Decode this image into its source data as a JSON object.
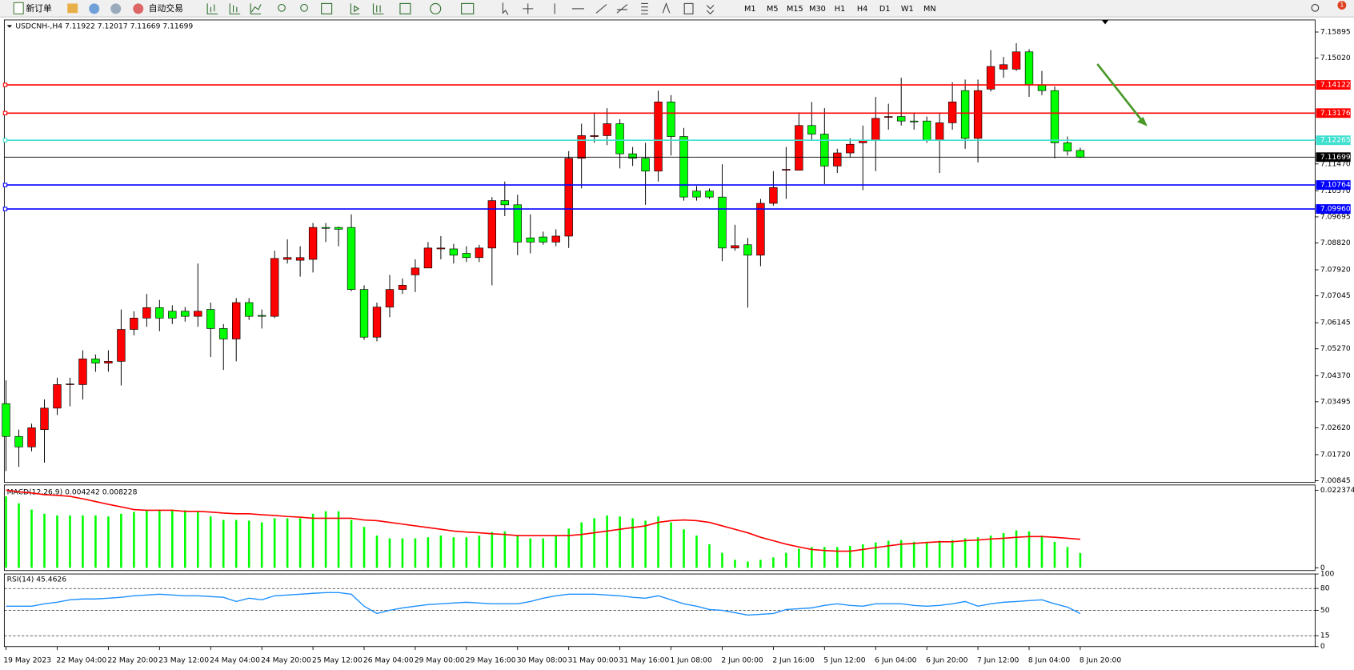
{
  "toolbar": {
    "new_order": "新订单",
    "auto_trading": "自动交易",
    "timeframes": [
      "M1",
      "M5",
      "M15",
      "M30",
      "H1",
      "H4",
      "D1",
      "W1",
      "MN"
    ],
    "alerts": "1"
  },
  "chart_data": [
    {
      "type": "candlestick",
      "symbol": "USDCNH-,H4",
      "up_color": "#ff0000",
      "down_color": "#00ff00",
      "categories": [
        "19 May 2023",
        null,
        null,
        null,
        "22 May 04:00",
        null,
        null,
        null,
        "22 May 20:00",
        null,
        null,
        null,
        "23 May 12:00",
        null,
        null,
        null,
        "24 May 04:00",
        null,
        null,
        null,
        "24 May 20:00",
        null,
        null,
        null,
        "25 May 12:00",
        null,
        null,
        null,
        "26 May 04:00",
        null,
        null,
        null,
        "29 May 00:00",
        null,
        null,
        null,
        "29 May 16:00",
        null,
        null,
        null,
        "30 May 08:00",
        null,
        null,
        null,
        "31 May 00:00",
        null,
        null,
        null,
        "31 May 16:00",
        null,
        null,
        null,
        "1 Jun 08:00",
        null,
        null,
        null,
        "2 Jun 00:00",
        null,
        null,
        null,
        "2 Jun 16:00",
        null,
        null,
        null,
        "5 Jun 12:00",
        null,
        null,
        null,
        "6 Jun 04:00",
        null,
        null,
        null,
        "6 Jun 20:00",
        null,
        null,
        null,
        "7 Jun 12:00",
        null,
        null,
        null,
        "8 Jun 04:00",
        null,
        null,
        null,
        "8 Jun 20:00"
      ],
      "open": [
        7.0343,
        7.0233,
        7.0198,
        7.0256,
        7.0328,
        7.0407,
        7.0407,
        7.0493,
        7.0479,
        7.0485,
        7.0592,
        7.063,
        7.0665,
        7.0653,
        7.0653,
        7.0636,
        7.0659,
        7.0595,
        7.056,
        7.0682,
        7.0639,
        7.0636,
        7.0827,
        7.0824,
        7.0827,
        7.0934,
        7.0934,
        7.0934,
        7.0726,
        7.0566,
        7.0667,
        7.0726,
        7.0775,
        7.0798,
        7.0862,
        7.0862,
        7.0847,
        7.0833,
        7.0865,
        7.1024,
        7.101,
        7.0899,
        7.0902,
        7.0885,
        7.0905,
        7.1166,
        7.1239,
        7.1242,
        7.1282,
        7.1181,
        7.1166,
        7.1123,
        7.1355,
        7.1239,
        7.1056,
        7.1056,
        7.1036,
        7.0865,
        7.0876,
        7.0841,
        7.1015,
        7.1126,
        7.1126,
        7.1276,
        7.1247,
        7.114,
        7.1184,
        7.1218,
        7.1227,
        7.1303,
        7.1306,
        7.1291,
        7.1291,
        7.1227,
        7.1285,
        7.1393,
        7.1233,
        7.1398,
        7.1465,
        7.1465,
        7.1523,
        7.1413,
        7.1393,
        7.1218,
        7.11922
      ],
      "high": [
        7.0421,
        7.0256,
        7.0276,
        7.0357,
        7.043,
        7.043,
        7.0522,
        7.0508,
        7.0522,
        7.0659,
        7.0653,
        7.0711,
        7.0691,
        7.0673,
        7.0667,
        7.0813,
        7.0682,
        7.061,
        7.0697,
        7.0697,
        7.0659,
        7.0856,
        7.0894,
        7.0871,
        7.0949,
        7.0949,
        7.0937,
        7.0978,
        7.074,
        7.0682,
        7.0775,
        7.0763,
        7.0827,
        7.0885,
        7.0905,
        7.0879,
        7.0871,
        7.0876,
        7.1036,
        7.1088,
        7.1044,
        7.0978,
        7.092,
        7.0928,
        7.119,
        7.1282,
        7.132,
        7.1334,
        7.1297,
        7.1204,
        7.1218,
        7.1393,
        7.1378,
        7.1268,
        7.1073,
        7.1065,
        7.1146,
        7.0943,
        7.0899,
        7.103,
        7.1123,
        7.1204,
        7.132,
        7.1355,
        7.1334,
        7.1198,
        7.1233,
        7.1276,
        7.1372,
        7.1349,
        7.1436,
        7.132,
        7.1306,
        7.132,
        7.1421,
        7.143,
        7.143,
        7.1529,
        7.1506,
        7.1552,
        7.1532,
        7.1459,
        7.1407,
        7.1239,
        7.12017
      ],
      "low": [
        7.0117,
        7.0131,
        7.0183,
        7.0145,
        7.0305,
        7.0334,
        7.0357,
        7.045,
        7.045,
        7.0404,
        7.0572,
        7.0601,
        7.0586,
        7.061,
        7.0618,
        7.0601,
        7.0499,
        7.0456,
        7.0485,
        7.0624,
        7.0595,
        7.063,
        7.0813,
        7.0769,
        7.0783,
        7.0885,
        7.0871,
        7.072,
        7.0557,
        7.0552,
        7.0633,
        7.0711,
        7.0717,
        7.0798,
        7.0827,
        7.0813,
        7.0818,
        7.0818,
        7.074,
        7.0972,
        7.0841,
        7.0847,
        7.0876,
        7.0871,
        7.0865,
        7.1065,
        7.1218,
        7.121,
        7.1132,
        7.114,
        7.101,
        7.1088,
        7.1175,
        7.1024,
        7.1024,
        7.103,
        7.0821,
        7.0856,
        7.0665,
        7.0804,
        7.1007,
        7.103,
        7.1126,
        7.1227,
        7.1079,
        7.1117,
        7.1169,
        7.1059,
        7.1123,
        7.1262,
        7.1276,
        7.1262,
        7.1218,
        7.1117,
        7.1262,
        7.1198,
        7.1152,
        7.139,
        7.1436,
        7.1459,
        7.1372,
        7.1378,
        7.1166,
        7.1175,
        7.11669
      ],
      "close": [
        7.0233,
        7.0198,
        7.0262,
        7.0328,
        7.0407,
        7.0409,
        7.0493,
        7.0479,
        7.0485,
        7.0592,
        7.063,
        7.0665,
        7.063,
        7.063,
        7.0636,
        7.0653,
        7.0595,
        7.056,
        7.0682,
        7.0636,
        7.0636,
        7.083,
        7.0833,
        7.0833,
        7.0934,
        7.0931,
        7.0928,
        7.0726,
        7.0566,
        7.0667,
        7.0726,
        7.074,
        7.0798,
        7.0865,
        7.0865,
        7.0841,
        7.0833,
        7.0865,
        7.1024,
        7.101,
        7.0885,
        7.0885,
        7.0885,
        7.0905,
        7.1166,
        7.1242,
        7.1242,
        7.1282,
        7.1181,
        7.1166,
        7.1123,
        7.1355,
        7.1239,
        7.1036,
        7.1036,
        7.1036,
        7.0865,
        7.0873,
        7.0841,
        7.1015,
        7.1068,
        7.1129,
        7.1276,
        7.1247,
        7.114,
        7.1184,
        7.1213,
        7.1227,
        7.13,
        7.1306,
        7.1291,
        7.1288,
        7.1227,
        7.1285,
        7.1355,
        7.1233,
        7.1393,
        7.1474,
        7.148,
        7.1523,
        7.1413,
        7.1393,
        7.1218,
        7.119,
        7.11699
      ],
      "ylim": [
        7.0079,
        7.163
      ],
      "yticks": [
        7.15895,
        {
          "value": 7.1502,
          "label": "7.15020"
        },
        {
          "value": 7.1147,
          "label": "7.11470"
        },
        {
          "value": 7.1057,
          "label": "7.10570"
        },
        7.09695,
        {
          "value": 7.0882,
          "label": "7.08820"
        },
        {
          "value": 7.0792,
          "label": "7.07920"
        },
        7.07045,
        7.06145,
        {
          "value": 7.0527,
          "label": "7.05270"
        },
        {
          "value": 7.0437,
          "label": "7.04370"
        },
        7.03495,
        {
          "value": 7.0262,
          "label": "7.02620"
        },
        {
          "value": 7.0172,
          "label": "7.01720"
        },
        7.00845
      ],
      "price_lines": [
        {
          "value": 7.14122,
          "color": "#ff0000"
        },
        {
          "value": 7.13176,
          "color": "#ff0000"
        },
        {
          "value": 7.12265,
          "color": "#40e0d0"
        },
        {
          "value": 7.11699,
          "color": "#000000"
        },
        {
          "value": 7.10764,
          "color": "#0000ff"
        },
        {
          "value": {
            "value": 7.0996,
            "label": "7.09960"
          },
          "color": "#0000ff"
        }
      ]
    },
    {
      "type": "macd",
      "label": "MACD(12,26,9)",
      "hist_color": "#00ff00",
      "signal_color": "#ff0000",
      "histogram": [
        0.0206,
        0.0186,
        0.0168,
        0.0156,
        0.0151,
        0.0151,
        0.0151,
        0.0151,
        0.0148,
        0.0156,
        0.0161,
        0.0166,
        0.0168,
        0.0168,
        0.0166,
        0.0161,
        0.0148,
        0.0138,
        0.0138,
        0.0136,
        0.0131,
        0.0143,
        0.0143,
        0.0143,
        0.0156,
        0.0163,
        0.0163,
        0.0138,
        0.0118,
        0.0093,
        0.0085,
        0.0085,
        0.0085,
        0.0088,
        0.0093,
        0.0088,
        0.0088,
        0.0093,
        0.0103,
        0.0105,
        0.0093,
        0.0085,
        0.0085,
        0.0093,
        0.0113,
        0.0131,
        0.0143,
        0.0151,
        0.0148,
        0.0143,
        0.0136,
        0.0148,
        0.0131,
        0.0111,
        0.0093,
        0.0068,
        0.0043,
        0.0023,
        0.0018,
        0.0023,
        0.003,
        0.0043,
        0.0055,
        0.006,
        0.006,
        0.006,
        0.0063,
        0.0068,
        0.0073,
        0.0078,
        0.008,
        0.0075,
        0.0075,
        0.0078,
        0.008,
        0.0085,
        0.0088,
        0.0093,
        0.01,
        0.0108,
        0.0105,
        0.0093,
        0.0075,
        0.006,
        0.004242
      ],
      "signal": [
        0.0224,
        0.0219,
        0.0216,
        0.0211,
        0.0209,
        0.0206,
        0.0199,
        0.0191,
        0.0183,
        0.0176,
        0.0168,
        0.0166,
        0.0166,
        0.0166,
        0.0163,
        0.0163,
        0.0161,
        0.0158,
        0.0156,
        0.0156,
        0.0153,
        0.0151,
        0.0148,
        0.0146,
        0.0143,
        0.0143,
        0.0143,
        0.0143,
        0.0138,
        0.0136,
        0.0131,
        0.0126,
        0.0121,
        0.0116,
        0.0111,
        0.0106,
        0.0103,
        0.0101,
        0.0098,
        0.0096,
        0.0093,
        0.0093,
        0.0093,
        0.0093,
        0.0093,
        0.0096,
        0.0101,
        0.0106,
        0.0111,
        0.0116,
        0.0121,
        0.0131,
        0.0136,
        0.0138,
        0.0136,
        0.0131,
        0.0121,
        0.0111,
        0.0101,
        0.0088,
        0.0078,
        0.0068,
        0.006,
        0.0053,
        0.005,
        0.0048,
        0.0048,
        0.0053,
        0.0058,
        0.0063,
        0.0068,
        0.007,
        0.0073,
        0.0075,
        0.0075,
        0.0078,
        0.008,
        0.0083,
        0.0085,
        0.0088,
        0.009,
        0.009,
        0.0088,
        0.0085,
        0.008228
      ],
      "ylim": [
        -0.0008,
        0.0239
      ],
      "yticks": [
        0.022374,
        0
      ]
    },
    {
      "type": "rsi",
      "label": "RSI(14)",
      "color": "#1e90ff",
      "values": [
        55.6,
        55.6,
        55.6,
        58.9,
        61.1,
        64.4,
        65.6,
        65.6,
        66.7,
        67.8,
        70,
        71.1,
        72.2,
        71.1,
        70,
        70,
        68.9,
        67.8,
        62.2,
        66.7,
        64.4,
        70,
        71.1,
        72.2,
        73.3,
        74.4,
        74.4,
        72.2,
        55.6,
        45.6,
        50,
        53.3,
        55.6,
        57.8,
        58.9,
        60,
        61.1,
        60,
        58.9,
        58.9,
        58.9,
        62.2,
        66.7,
        70,
        72.2,
        72.2,
        72.2,
        71.1,
        70,
        67.8,
        66.7,
        70,
        64.4,
        58.9,
        55.6,
        51.1,
        50,
        46.7,
        43.3,
        44.4,
        45.6,
        51.1,
        52.2,
        53.3,
        56.7,
        58.9,
        56.7,
        55.6,
        58.9,
        58.9,
        58.9,
        56.7,
        55.6,
        56.7,
        58.9,
        62.2,
        55.6,
        58.9,
        61.1,
        62.2,
        63.3,
        64.4,
        58.9,
        54.4,
        45.4626
      ],
      "ylim": [
        0,
        100
      ],
      "yticks": [
        100,
        80,
        50,
        15,
        0
      ]
    }
  ]
}
